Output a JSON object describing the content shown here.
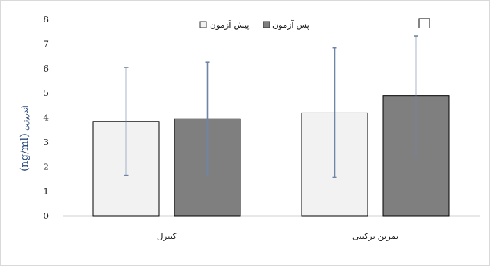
{
  "chart_data": {
    "type": "bar",
    "categories": [
      "کنترل",
      "تمرین ترکیبی"
    ],
    "series": [
      {
        "name": "پیش آزمون",
        "color": "#f2f2f2",
        "values": [
          3.85,
          4.2
        ],
        "error_low": [
          1.65,
          1.57
        ],
        "error_high": [
          6.05,
          6.85
        ]
      },
      {
        "name": "پس آزمون",
        "color": "#7f7f7f",
        "values": [
          3.95,
          4.9
        ],
        "error_low": [
          1.63,
          2.45
        ],
        "error_high": [
          6.27,
          7.32
        ]
      }
    ],
    "ylim": [
      0,
      8
    ],
    "yticks": [
      "0",
      "1",
      "2",
      "3",
      "4",
      "5",
      "6",
      "7",
      "8"
    ],
    "ylabel_unit": "(ng/ml)",
    "ylabel_name": "آندروژین",
    "legend_position": "top-center",
    "error_bar_color": "#6d86a8"
  }
}
